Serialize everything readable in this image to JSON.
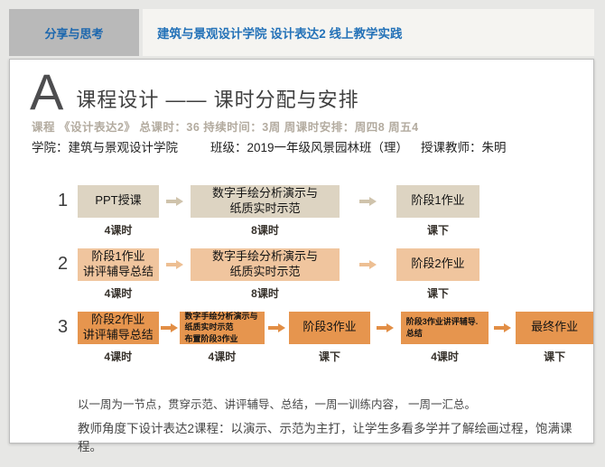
{
  "header": {
    "tab_label": "分享与思考",
    "title": "建筑与景观设计学院 设计表达2 线上教学实践"
  },
  "slide": {
    "section_letter": "A",
    "title": "课程设计 —— 课时分配与安排",
    "course_meta": "课程 《设计表达2》 总课时：36 持续时间：3周 周课时安排：周四8 周五4",
    "info": {
      "school": "学院：建筑与景观设计学院",
      "class": "班级：2019一年级风景园林班（理）",
      "teacher": "授课教师：朱明"
    },
    "flow": {
      "rows": [
        {
          "num": "1",
          "boxes": [
            {
              "text": "PPT授课",
              "sub": "4课时"
            },
            {
              "text": "数字手绘分析演示与\n纸质实时示范",
              "sub": "8课时"
            },
            {
              "text": "阶段1作业",
              "sub": "课下"
            }
          ]
        },
        {
          "num": "2",
          "boxes": [
            {
              "text": "阶段1作业\n讲评辅导总结",
              "sub": "4课时"
            },
            {
              "text": "数字手绘分析演示与\n纸质实时示范",
              "sub": "8课时"
            },
            {
              "text": "阶段2作业",
              "sub": "课下"
            }
          ]
        },
        {
          "num": "3",
          "boxes": [
            {
              "text": "阶段2作业\n讲评辅导总结",
              "sub": "4课时"
            },
            {
              "text": "数字手绘分析演示与\n纸质实时示范\n布置阶段3作业",
              "sub": "4课时"
            },
            {
              "text": "阶段3作业",
              "sub": "课下"
            },
            {
              "text": "阶段3作业讲评辅导.\n总结",
              "sub": "4课时"
            },
            {
              "text": "最终作业",
              "sub": "课下"
            }
          ]
        }
      ]
    },
    "notes": [
      "以一周为一节点，贯穿示范、讲评辅导、总结，一周一训练内容， 一周一汇总。",
      "教师角度下设计表达2课程：以演示、示范为主打，让学生多看多学并了解绘画过程，饱满课程。"
    ],
    "colors": {
      "accent_blue": "#2472b8",
      "tab_gray": "#b9b9b9",
      "row1_box": "#ddd4c2",
      "row2_box": "#f0c59e",
      "row3_box": "#e6954e"
    }
  }
}
